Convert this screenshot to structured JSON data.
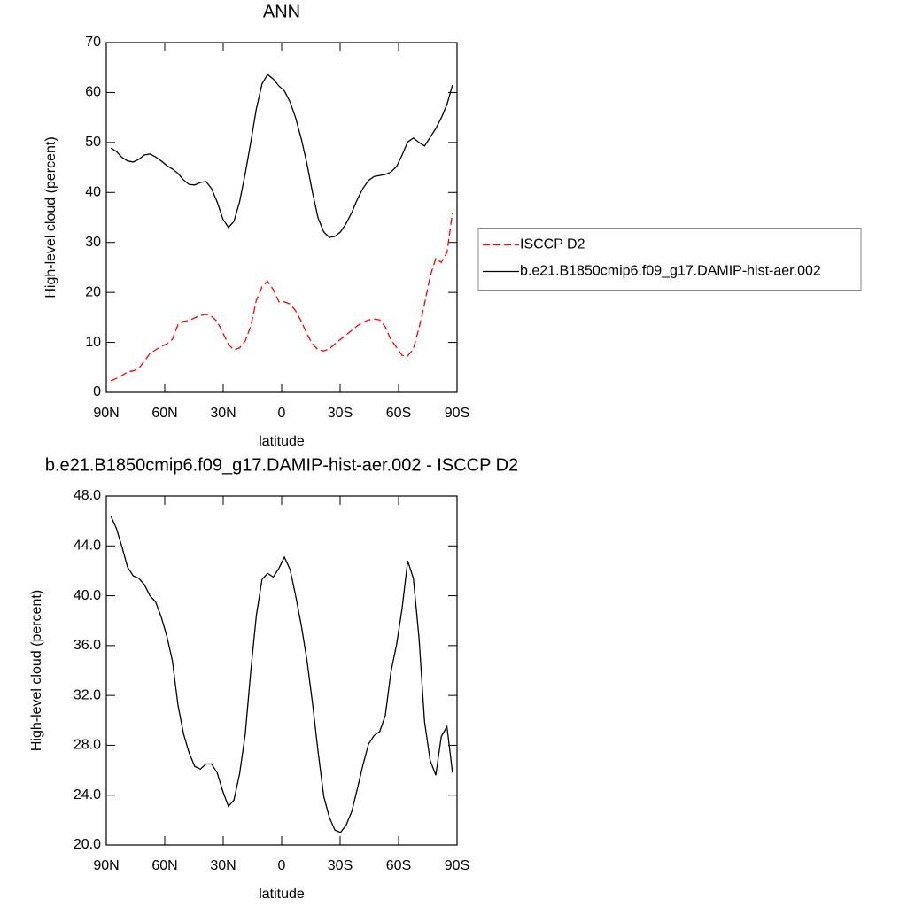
{
  "chart_data": [
    {
      "type": "line",
      "title": "ANN",
      "x_label": "latitude",
      "y_label": "High-level cloud (percent)",
      "x": [
        87.7,
        84.8,
        81.9,
        79.1,
        76.2,
        73.3,
        70.5,
        67.6,
        64.7,
        61.8,
        59.0,
        56.1,
        53.2,
        50.3,
        47.5,
        44.6,
        41.7,
        38.8,
        36.0,
        33.1,
        30.2,
        27.3,
        24.5,
        21.6,
        18.7,
        15.8,
        13.0,
        10.1,
        7.2,
        4.3,
        1.4,
        -1.4,
        -4.3,
        -7.2,
        -10.1,
        -13.0,
        -15.8,
        -18.7,
        -21.6,
        -24.5,
        -27.3,
        -30.2,
        -33.1,
        -36.0,
        -38.8,
        -41.7,
        -44.6,
        -47.5,
        -50.3,
        -53.2,
        -56.1,
        -59.0,
        -61.8,
        -64.7,
        -67.6,
        -70.5,
        -73.3,
        -76.2,
        -79.1,
        -81.9,
        -84.8,
        -87.7
      ],
      "series": [
        {
          "name": "ISCCP D2",
          "color": "#ff0000",
          "dash": true,
          "values": [
            2.3,
            2.8,
            3.4,
            4.1,
            4.3,
            4.8,
            6.2,
            7.8,
            8.5,
            9.2,
            9.7,
            10.6,
            13.6,
            14.2,
            14.4,
            14.9,
            15.4,
            15.6,
            15.2,
            14.2,
            11.9,
            9.6,
            8.5,
            8.9,
            10.3,
            13.3,
            18.4,
            21.1,
            22.2,
            20.6,
            18.1,
            18.1,
            17.7,
            16.3,
            14.2,
            11.7,
            9.7,
            8.5,
            8.3,
            8.7,
            9.7,
            10.6,
            11.5,
            12.4,
            13.3,
            14.0,
            14.5,
            14.7,
            14.5,
            13.1,
            10.5,
            9.0,
            7.4,
            7.3,
            8.7,
            12.9,
            17.7,
            23.2,
            26.8,
            26.0,
            28.0,
            36.0
          ]
        },
        {
          "name": "b.e21.B1850cmip6.f09_g17.DAMIP-hist-aer.002",
          "color": "#000000",
          "dash": false,
          "values": [
            48.9,
            48.2,
            47.0,
            46.3,
            46.1,
            46.6,
            47.5,
            47.7,
            47.1,
            46.3,
            45.4,
            44.7,
            43.8,
            42.5,
            41.6,
            41.5,
            42.0,
            42.2,
            40.8,
            38.1,
            34.7,
            33.0,
            34.2,
            38.1,
            43.8,
            50.1,
            56.7,
            61.7,
            63.6,
            62.7,
            61.3,
            60.3,
            58.1,
            54.9,
            50.7,
            45.7,
            40.0,
            34.9,
            32.1,
            31.0,
            31.2,
            32.1,
            33.8,
            36.0,
            38.6,
            40.8,
            42.4,
            43.2,
            43.4,
            43.6,
            44.1,
            45.2,
            47.5,
            50.1,
            50.9,
            50.0,
            49.3,
            51.0,
            52.8,
            54.9,
            57.6,
            61.5
          ]
        }
      ],
      "xlim": [
        90,
        -90
      ],
      "xticks": [
        {
          "value": 90,
          "label": "90N"
        },
        {
          "value": 60,
          "label": "60N"
        },
        {
          "value": 30,
          "label": "30N"
        },
        0,
        {
          "value": -30,
          "label": "30S"
        },
        {
          "value": -60,
          "label": "60S"
        },
        {
          "value": -90,
          "label": "90S"
        }
      ],
      "ylim": [
        0,
        70
      ],
      "yticks": [
        0,
        10,
        20,
        30,
        40,
        50,
        60,
        70
      ],
      "legend": "right"
    },
    {
      "type": "line",
      "title": "b.e21.B1850cmip6.f09_g17.DAMIP-hist-aer.002 - ISCCP D2",
      "x_label": "latitude",
      "y_label": "High-level cloud (percent)",
      "x": [
        87.7,
        84.8,
        81.9,
        79.1,
        76.2,
        73.3,
        70.5,
        67.6,
        64.7,
        61.8,
        59.0,
        56.1,
        53.2,
        50.3,
        47.5,
        44.6,
        41.7,
        38.8,
        36.0,
        33.1,
        30.2,
        27.3,
        24.5,
        21.6,
        18.7,
        15.8,
        13.0,
        10.1,
        7.2,
        4.3,
        1.4,
        -1.4,
        -4.3,
        -7.2,
        -10.1,
        -13.0,
        -15.8,
        -18.7,
        -21.6,
        -24.5,
        -27.3,
        -30.2,
        -33.1,
        -36.0,
        -38.8,
        -41.7,
        -44.6,
        -47.5,
        -50.3,
        -53.2,
        -56.1,
        -59.0,
        -61.8,
        -64.7,
        -67.6,
        -70.5,
        -73.3,
        -76.2,
        -79.1,
        -81.9,
        -84.8,
        -87.7
      ],
      "color": "#000000",
      "values": [
        46.4,
        45.4,
        43.9,
        42.3,
        41.6,
        41.4,
        40.9,
        40.0,
        39.5,
        38.3,
        36.8,
        34.8,
        31.2,
        28.9,
        27.4,
        26.3,
        26.1,
        26.5,
        26.5,
        25.8,
        24.3,
        23.1,
        23.6,
        25.7,
        28.9,
        34.0,
        38.4,
        41.3,
        41.8,
        41.5,
        42.2,
        43.1,
        42.1,
        40.0,
        37.6,
        34.8,
        31.4,
        27.5,
        23.9,
        22.2,
        21.2,
        21.0,
        21.6,
        22.7,
        24.5,
        26.4,
        28.1,
        28.8,
        29.1,
        30.4,
        33.9,
        36.1,
        39.0,
        42.8,
        41.4,
        36.6,
        29.9,
        26.8,
        25.6,
        28.7,
        29.5,
        25.8
      ],
      "xlim": [
        90,
        -90
      ],
      "xticks": [
        {
          "value": 90,
          "label": "90N"
        },
        {
          "value": 60,
          "label": "60N"
        },
        {
          "value": 30,
          "label": "30N"
        },
        0,
        {
          "value": -30,
          "label": "30S"
        },
        {
          "value": -60,
          "label": "60S"
        },
        {
          "value": -90,
          "label": "90S"
        }
      ],
      "ylim": [
        20,
        48
      ],
      "yticks": [
        {
          "value": 20,
          "label": "20.0"
        },
        {
          "value": 24,
          "label": "24.0"
        },
        {
          "value": 28,
          "label": "28.0"
        },
        {
          "value": 32,
          "label": "32.0"
        },
        {
          "value": 36,
          "label": "36.0"
        },
        {
          "value": 40,
          "label": "40.0"
        },
        {
          "value": 44,
          "label": "44.0"
        },
        {
          "value": 48,
          "label": "48.0"
        }
      ]
    }
  ]
}
